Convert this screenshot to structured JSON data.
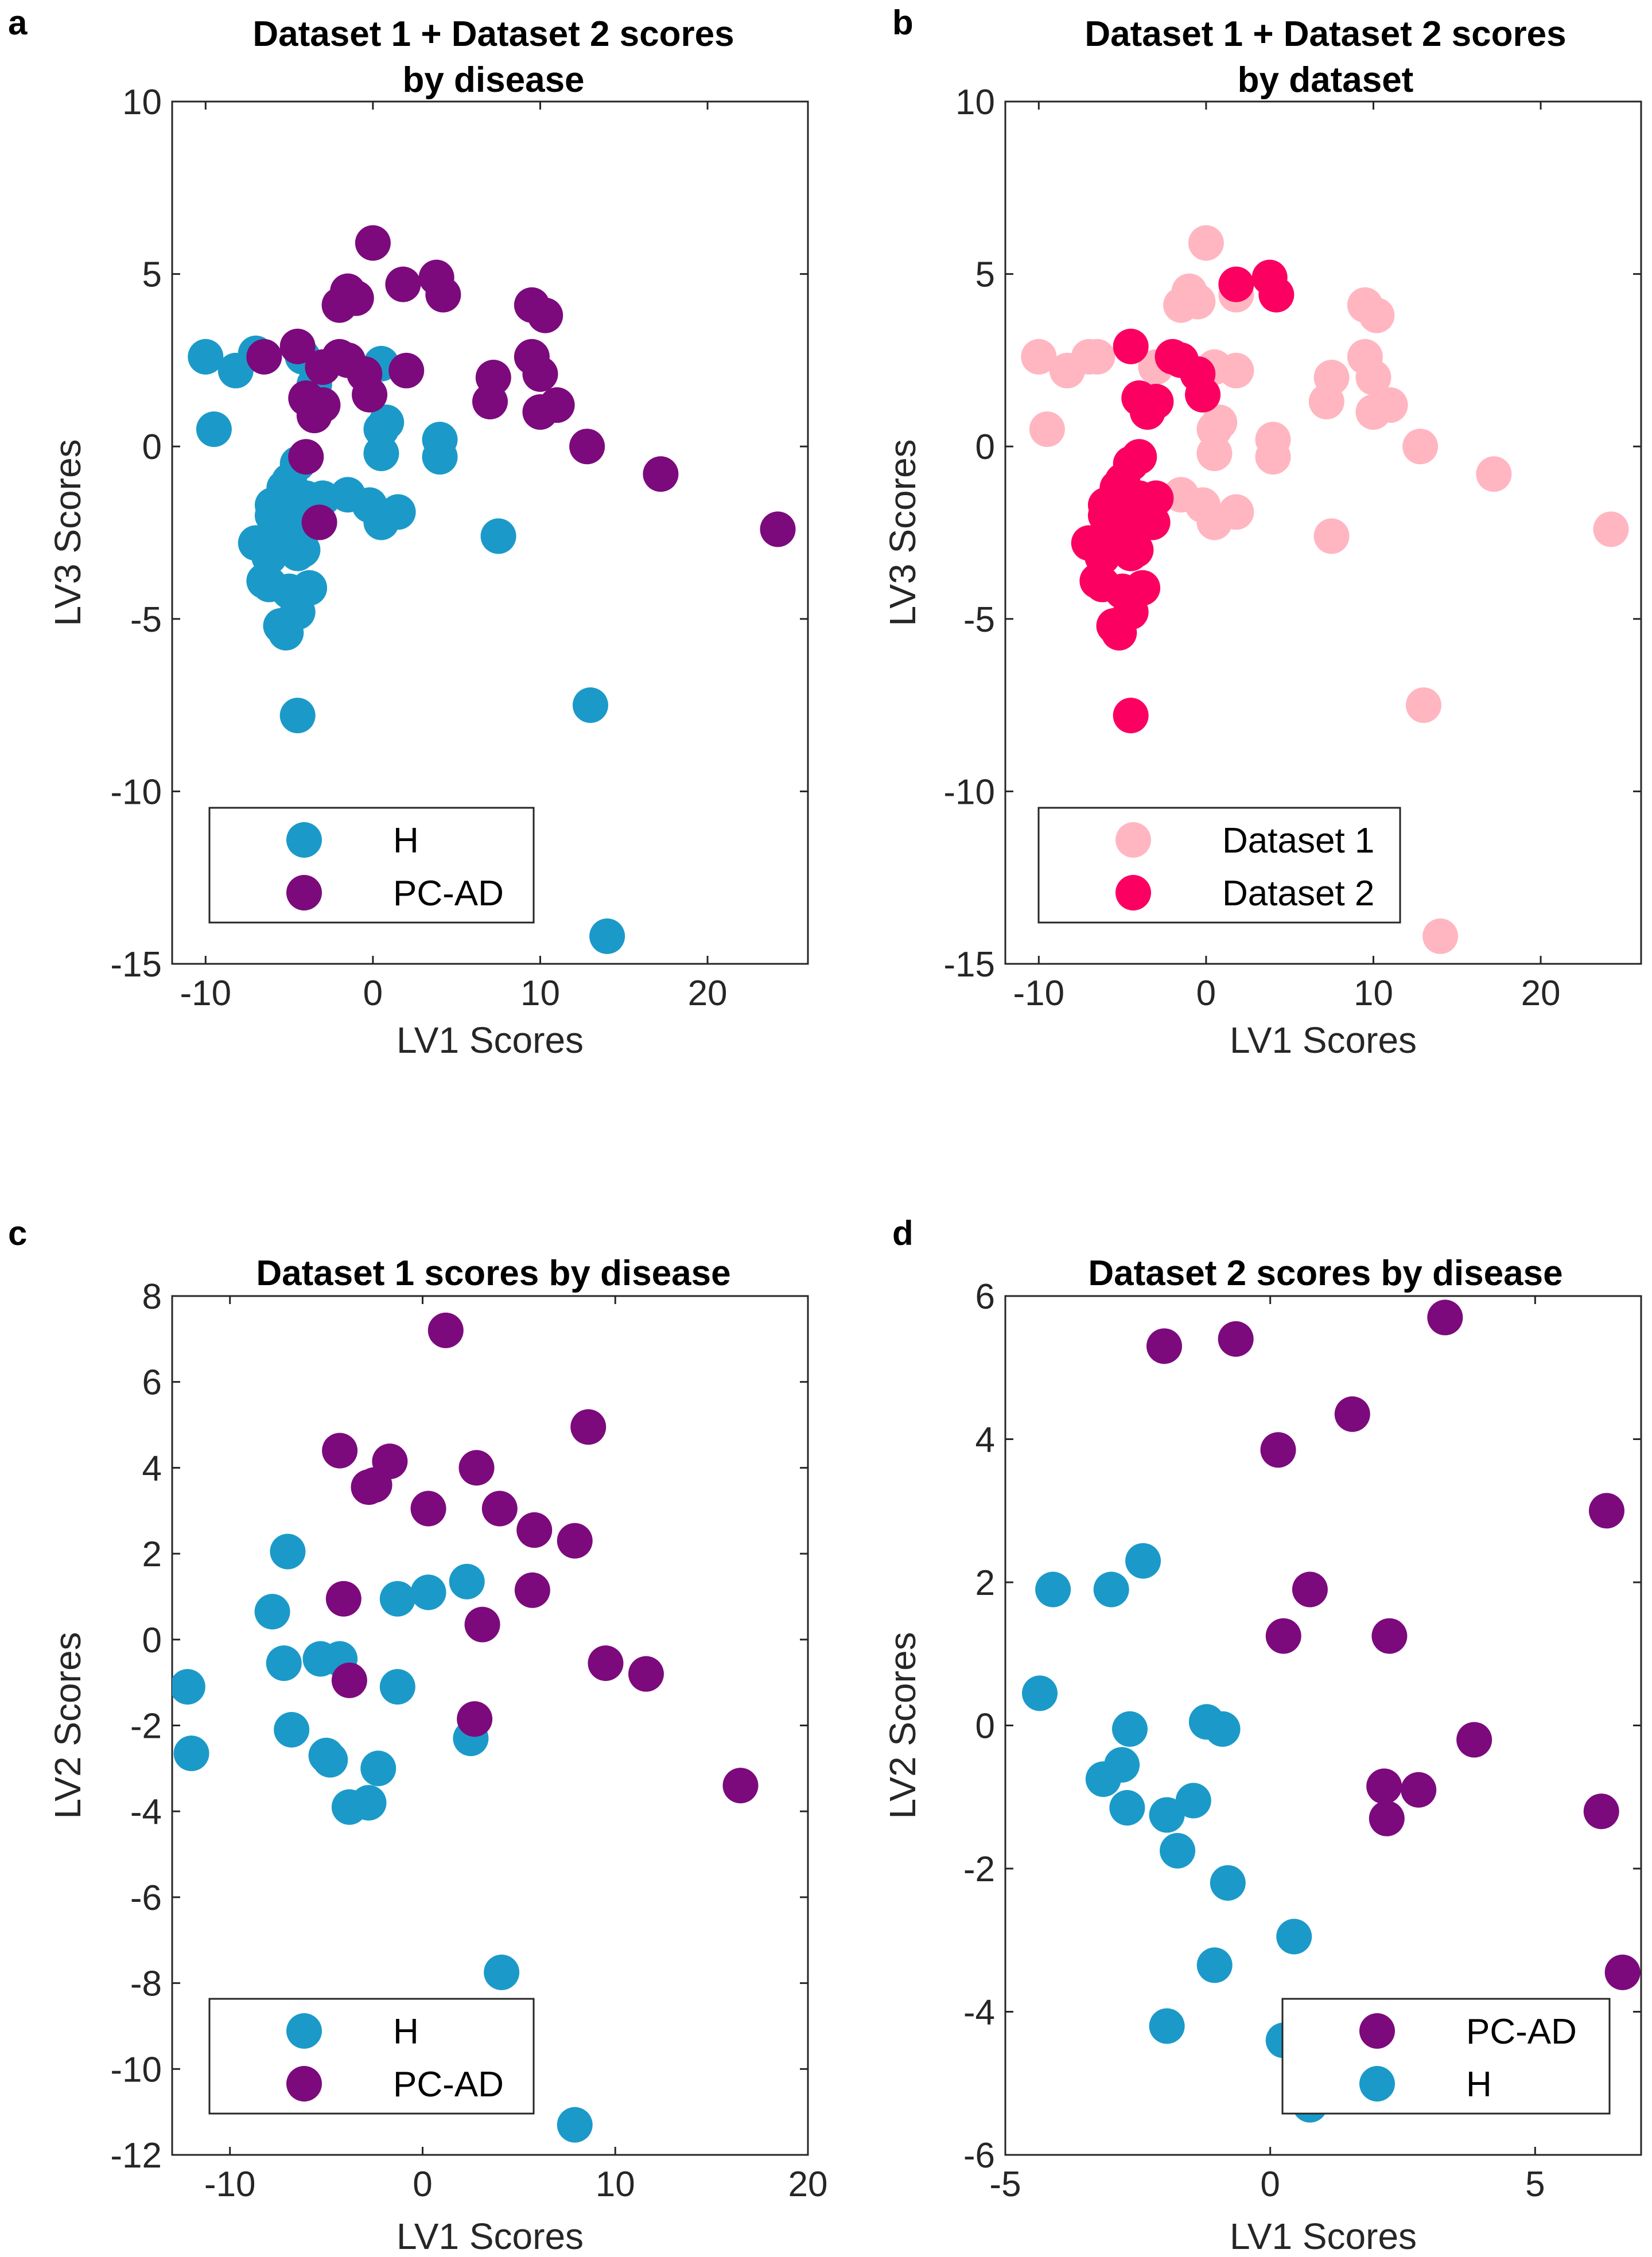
{
  "colors": {
    "H": "#1b9ac9",
    "PC-AD": "#7c0a7d",
    "Dataset 1": "#ffb6c1",
    "Dataset 2": "#fb0060"
  },
  "chart_data": [
    {
      "panel": "a",
      "type": "scatter",
      "title": [
        "Dataset 1 + Dataset 2 scores",
        "by disease"
      ],
      "xlabel": "LV1 Scores",
      "ylabel": "LV3 Scores",
      "xlim": [
        -12,
        26
      ],
      "ylim": [
        -15,
        10
      ],
      "xticks": [
        -10,
        0,
        10,
        20
      ],
      "yticks": [
        -15,
        -10,
        -5,
        0,
        5,
        10
      ],
      "legend": {
        "position": "bottom-left",
        "entries": [
          "H",
          "PC-AD"
        ]
      },
      "series": [
        {
          "name": "H",
          "color": "#1b9ac9",
          "points": [
            [
              -10,
              2.6
            ],
            [
              -9.5,
              0.5
            ],
            [
              -8.2,
              2.2
            ],
            [
              -7,
              2.7
            ],
            [
              -4.2,
              2.6
            ],
            [
              -3.5,
              1.8
            ],
            [
              0.5,
              2.4
            ],
            [
              0.5,
              0.5
            ],
            [
              0.8,
              0.7
            ],
            [
              0.5,
              -0.2
            ],
            [
              4,
              0.2
            ],
            [
              4,
              -0.3
            ],
            [
              -4.5,
              -0.5
            ],
            [
              -5,
              -1
            ],
            [
              -5.3,
              -1.2
            ],
            [
              -5.5,
              -1.6
            ],
            [
              -6,
              -1.7
            ],
            [
              -6,
              -2
            ],
            [
              -4.5,
              -1.8
            ],
            [
              -4,
              -1.5
            ],
            [
              -3,
              -1.5
            ],
            [
              -1.5,
              -1.4
            ],
            [
              -0.2,
              -1.7
            ],
            [
              0.5,
              -2
            ],
            [
              1.5,
              -1.9
            ],
            [
              0.5,
              -2.2
            ],
            [
              -5.5,
              -2.5
            ],
            [
              -5,
              -2.7
            ],
            [
              -4.5,
              -2.6
            ],
            [
              -4.2,
              -3
            ],
            [
              -7,
              -2.8
            ],
            [
              -6.2,
              -3.2
            ],
            [
              -4.5,
              -3.1
            ],
            [
              -6.5,
              -3.9
            ],
            [
              -6.2,
              -4
            ],
            [
              -5,
              -4.2
            ],
            [
              -3.8,
              -4.1
            ],
            [
              -4.5,
              -4.8
            ],
            [
              -5.5,
              -5.2
            ],
            [
              -5.2,
              -5.4
            ],
            [
              -4.5,
              -7.8
            ],
            [
              7.5,
              -2.6
            ],
            [
              13,
              -7.5
            ],
            [
              14,
              -14.2
            ]
          ]
        },
        {
          "name": "PC-AD",
          "color": "#7c0a7d",
          "points": [
            [
              0,
              5.9
            ],
            [
              -1.5,
              4.5
            ],
            [
              -2,
              4.1
            ],
            [
              -1,
              4.3
            ],
            [
              1.8,
              4.7
            ],
            [
              3.8,
              4.9
            ],
            [
              4.2,
              4.4
            ],
            [
              9.5,
              4.1
            ],
            [
              10.3,
              3.8
            ],
            [
              -6.5,
              2.6
            ],
            [
              -4.5,
              2.9
            ],
            [
              -3,
              2.3
            ],
            [
              -2,
              2.6
            ],
            [
              -1.5,
              2.5
            ],
            [
              -0.5,
              2.1
            ],
            [
              -0.2,
              1.5
            ],
            [
              2,
              2.2
            ],
            [
              9.5,
              2.6
            ],
            [
              7.2,
              2
            ],
            [
              10,
              2.1
            ],
            [
              10,
              1
            ],
            [
              11,
              1.2
            ],
            [
              7,
              1.3
            ],
            [
              -4,
              1.4
            ],
            [
              -3.5,
              0.9
            ],
            [
              -3,
              1.2
            ],
            [
              -4,
              -0.3
            ],
            [
              -3.2,
              -2.2
            ],
            [
              12.8,
              0
            ],
            [
              17.2,
              -0.8
            ],
            [
              24.2,
              -2.4
            ]
          ]
        }
      ]
    },
    {
      "panel": "b",
      "type": "scatter",
      "title": [
        "Dataset 1 + Dataset 2 scores",
        "by dataset"
      ],
      "xlabel": "LV1 Scores",
      "ylabel": "LV3 Scores",
      "xlim": [
        -12,
        26
      ],
      "ylim": [
        -15,
        10
      ],
      "xticks": [
        -10,
        0,
        10,
        20
      ],
      "yticks": [
        -15,
        -10,
        -5,
        0,
        5,
        10
      ],
      "legend": {
        "position": "bottom-left",
        "entries": [
          "Dataset 1",
          "Dataset 2"
        ]
      },
      "series": [
        {
          "name": "Dataset 1",
          "color": "#ffb6c1",
          "points": [
            [
              0,
              5.9
            ],
            [
              -1,
              4.5
            ],
            [
              -1.5,
              4.1
            ],
            [
              -0.5,
              4.2
            ],
            [
              1.8,
              4.4
            ],
            [
              9.5,
              4.1
            ],
            [
              10.2,
              3.8
            ],
            [
              -10,
              2.6
            ],
            [
              -8.3,
              2.2
            ],
            [
              -7,
              2.6
            ],
            [
              -6.5,
              2.6
            ],
            [
              -3,
              2.3
            ],
            [
              0.5,
              2.3
            ],
            [
              1.8,
              2.2
            ],
            [
              9.5,
              2.6
            ],
            [
              7.5,
              2
            ],
            [
              10,
              2
            ],
            [
              10,
              1
            ],
            [
              11,
              1.2
            ],
            [
              7.2,
              1.3
            ],
            [
              0.5,
              0.5
            ],
            [
              0.8,
              0.7
            ],
            [
              0.5,
              -0.2
            ],
            [
              4,
              0.2
            ],
            [
              4,
              -0.3
            ],
            [
              12.8,
              0
            ],
            [
              -9.5,
              0.5
            ],
            [
              -1.5,
              -1.4
            ],
            [
              -0.2,
              -1.7
            ],
            [
              1.8,
              -1.9
            ],
            [
              0.5,
              -2.2
            ],
            [
              7.5,
              -2.6
            ],
            [
              17.2,
              -0.8
            ],
            [
              24.2,
              -2.4
            ],
            [
              13,
              -7.5
            ],
            [
              14,
              -14.2
            ]
          ]
        },
        {
          "name": "Dataset 2",
          "color": "#fb0060",
          "points": [
            [
              -4.5,
              2.9
            ],
            [
              -2,
              2.6
            ],
            [
              -1.5,
              2.5
            ],
            [
              -0.5,
              2.1
            ],
            [
              -0.2,
              1.5
            ],
            [
              1.8,
              4.7
            ],
            [
              3.8,
              4.9
            ],
            [
              4.2,
              4.4
            ],
            [
              -4,
              1.4
            ],
            [
              -3.5,
              1
            ],
            [
              -3,
              1.3
            ],
            [
              -4,
              -0.3
            ],
            [
              -4.5,
              -0.5
            ],
            [
              -5,
              -1
            ],
            [
              -5.3,
              -1.2
            ],
            [
              -5.5,
              -1.6
            ],
            [
              -6,
              -1.7
            ],
            [
              -6,
              -2
            ],
            [
              -4.5,
              -1.8
            ],
            [
              -4,
              -1.5
            ],
            [
              -3,
              -1.5
            ],
            [
              -3.2,
              -2.2
            ],
            [
              -5.5,
              -2.5
            ],
            [
              -5,
              -2.7
            ],
            [
              -4.5,
              -2.6
            ],
            [
              -4.2,
              -3
            ],
            [
              -7,
              -2.8
            ],
            [
              -6.2,
              -3.2
            ],
            [
              -4.5,
              -3.1
            ],
            [
              -6.5,
              -3.9
            ],
            [
              -6.2,
              -4
            ],
            [
              -5,
              -4.2
            ],
            [
              -3.8,
              -4.1
            ],
            [
              -4.5,
              -4.8
            ],
            [
              -5.5,
              -5.2
            ],
            [
              -5.2,
              -5.4
            ],
            [
              -4.5,
              -7.8
            ]
          ]
        }
      ]
    },
    {
      "panel": "c",
      "type": "scatter",
      "title": [
        "Dataset 1 scores by disease"
      ],
      "xlabel": "LV1 Scores",
      "ylabel": "LV2 Scores",
      "xlim": [
        -13,
        20
      ],
      "ylim": [
        -12,
        8
      ],
      "xticks": [
        -10,
        0,
        10,
        20
      ],
      "yticks": [
        -12,
        -10,
        -8,
        -6,
        -4,
        -2,
        0,
        2,
        4,
        6,
        8
      ],
      "legend": {
        "position": "bottom-left",
        "entries": [
          "H",
          "PC-AD"
        ]
      },
      "series": [
        {
          "name": "H",
          "color": "#1b9ac9",
          "points": [
            [
              -7,
              2.05
            ],
            [
              -7.8,
              0.65
            ],
            [
              -7.2,
              -0.55
            ],
            [
              -6.8,
              -2.1
            ],
            [
              -5.3,
              -0.45
            ],
            [
              -4.3,
              -0.45
            ],
            [
              -5,
              -2.7
            ],
            [
              -4.8,
              -2.8
            ],
            [
              -3.8,
              -3.9
            ],
            [
              -2.8,
              -3.8
            ],
            [
              -2.3,
              -3
            ],
            [
              -1.3,
              -1.1
            ],
            [
              -1.3,
              0.95
            ],
            [
              0.3,
              1.1
            ],
            [
              2.3,
              1.35
            ],
            [
              2.5,
              -2.3
            ],
            [
              4.1,
              -7.75
            ],
            [
              7.9,
              -11.3
            ],
            [
              -12.2,
              -1.1
            ],
            [
              -12.0,
              -2.65
            ]
          ]
        },
        {
          "name": "PC-AD",
          "color": "#7c0a7d",
          "points": [
            [
              1.2,
              7.2
            ],
            [
              -4.3,
              4.4
            ],
            [
              -1.7,
              4.15
            ],
            [
              -2.5,
              3.6
            ],
            [
              -2.8,
              3.55
            ],
            [
              0.3,
              3.05
            ],
            [
              2.8,
              4.0
            ],
            [
              4.0,
              3.05
            ],
            [
              5.8,
              2.55
            ],
            [
              7.9,
              2.3
            ],
            [
              8.6,
              4.95
            ],
            [
              5.7,
              1.15
            ],
            [
              3.1,
              0.35
            ],
            [
              -4.1,
              0.95
            ],
            [
              -3.8,
              -0.95
            ],
            [
              2.7,
              -1.85
            ],
            [
              9.5,
              -0.55
            ],
            [
              11.6,
              -0.8
            ],
            [
              16.5,
              -3.4
            ]
          ]
        }
      ]
    },
    {
      "panel": "d",
      "type": "scatter",
      "title": [
        "Dataset 2 scores by disease"
      ],
      "xlabel": "LV1 Scores",
      "ylabel": "LV2 Scores",
      "xlim": [
        -5,
        7
      ],
      "ylim": [
        -6,
        6
      ],
      "xticks": [
        -5,
        0,
        5
      ],
      "yticks": [
        -6,
        -4,
        -2,
        0,
        2,
        4,
        6
      ],
      "legend": {
        "position": "bottom-right",
        "entries": [
          "PC-AD",
          "H"
        ]
      },
      "series": [
        {
          "name": "PC-AD",
          "color": "#7c0a7d",
          "points": [
            [
              -2,
              5.3
            ],
            [
              -0.65,
              5.4
            ],
            [
              3.3,
              5.7
            ],
            [
              1.55,
              4.35
            ],
            [
              0.15,
              3.85
            ],
            [
              6.35,
              3.0
            ],
            [
              0.75,
              1.9
            ],
            [
              0.25,
              1.25
            ],
            [
              2.25,
              1.25
            ],
            [
              3.85,
              -0.2
            ],
            [
              2.15,
              -0.85
            ],
            [
              2.8,
              -0.9
            ],
            [
              2.2,
              -1.3
            ],
            [
              6.25,
              -1.2
            ],
            [
              6.65,
              -3.45
            ]
          ]
        },
        {
          "name": "H",
          "color": "#1b9ac9",
          "points": [
            [
              -4.1,
              1.9
            ],
            [
              -3,
              1.9
            ],
            [
              -2.4,
              2.3
            ],
            [
              -4.35,
              0.45
            ],
            [
              -2.65,
              -0.05
            ],
            [
              -1.2,
              0.05
            ],
            [
              -0.9,
              -0.05
            ],
            [
              -2.8,
              -0.55
            ],
            [
              -3.15,
              -0.75
            ],
            [
              -2.7,
              -1.15
            ],
            [
              -1.95,
              -1.25
            ],
            [
              -1.45,
              -1.05
            ],
            [
              -1.75,
              -1.75
            ],
            [
              -0.8,
              -2.2
            ],
            [
              -1.05,
              -3.35
            ],
            [
              0.45,
              -2.95
            ],
            [
              -1.95,
              -4.2
            ],
            [
              0.25,
              -4.4
            ],
            [
              0.75,
              -5.3
            ]
          ]
        }
      ]
    }
  ]
}
